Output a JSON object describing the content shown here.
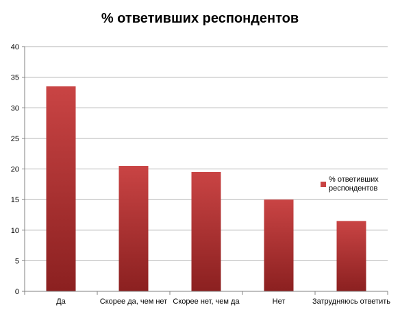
{
  "chart_data": {
    "type": "bar",
    "title": "% ответивших респондентов",
    "xlabel": "",
    "ylabel": "",
    "categories": [
      "Да",
      "Скорее да, чем нет",
      "Скорее нет, чем да",
      "Нет",
      "Затрудняюсь ответить"
    ],
    "series": [
      {
        "name": "% ответивших респондентов",
        "values": [
          33.5,
          20.5,
          19.5,
          15,
          11.5
        ]
      }
    ],
    "ylim": [
      0,
      40
    ],
    "yticks": [
      "0",
      "5",
      "10",
      "15",
      "20",
      "25",
      "30",
      "35",
      "40"
    ],
    "grid": true,
    "legend_position": "right",
    "colors": {
      "bar_top": "#c94444",
      "bar_bottom": "#8b2020",
      "grid": "#b3b3b3",
      "axis": "#808080"
    }
  }
}
